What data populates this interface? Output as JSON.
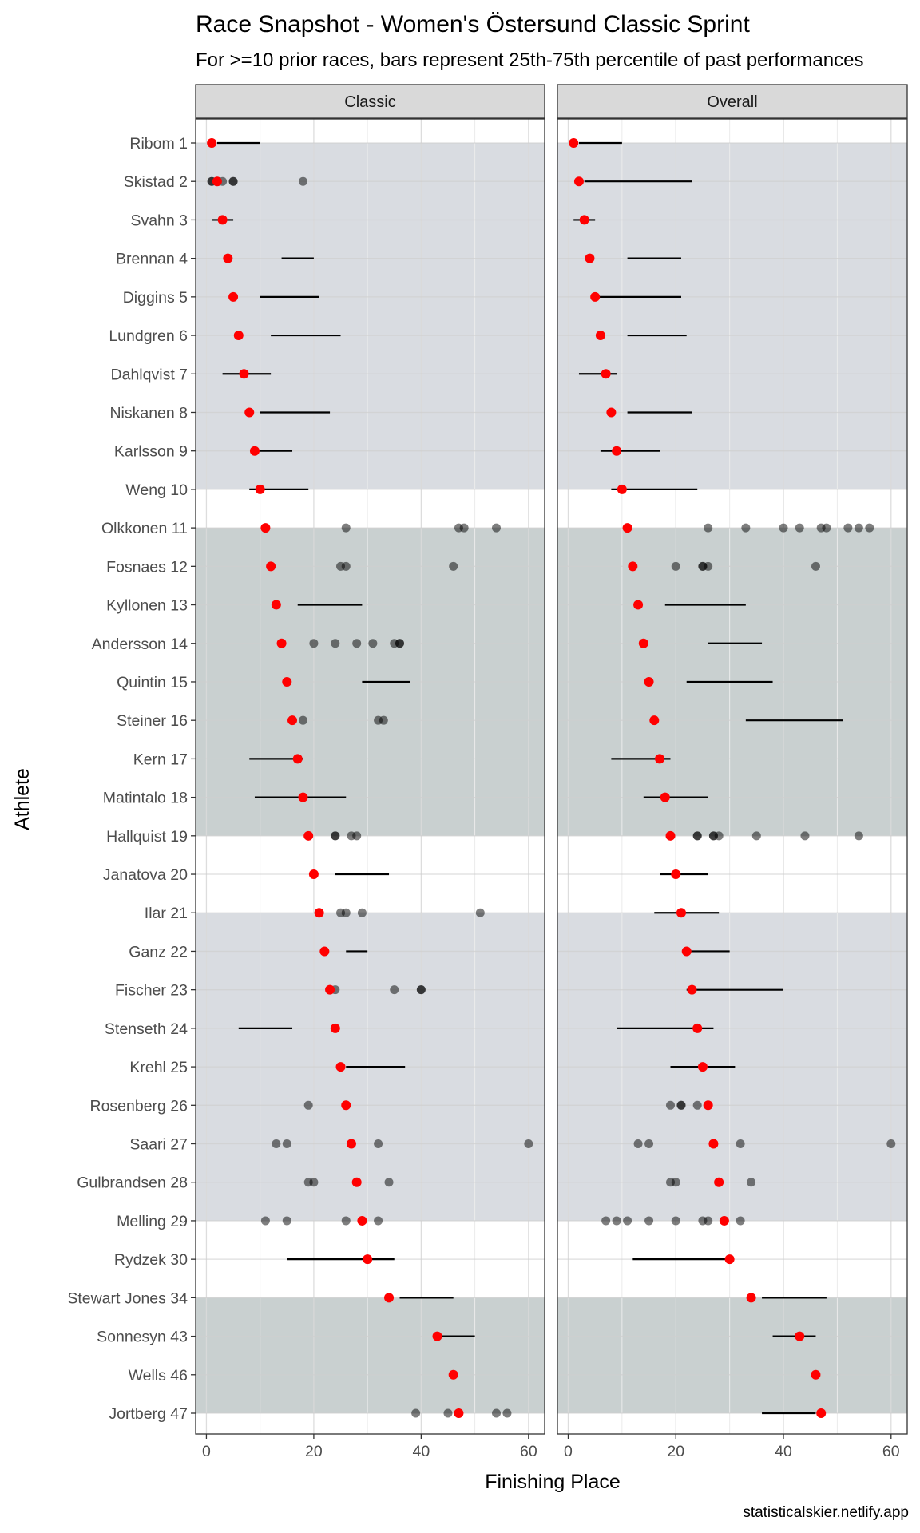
{
  "chart_data": {
    "type": "scatter",
    "title": "Race Snapshot -  Women's Östersund Classic Sprint",
    "subtitle": "For >=10 prior races, bars represent 25th-75th percentile of past performances",
    "xlabel": "Finishing Place",
    "ylabel": "Athlete",
    "caption": "statisticalskier.netlify.app",
    "xlim": [
      -2,
      63
    ],
    "x_ticks": [
      0,
      20,
      40,
      60
    ],
    "grid": true,
    "colors": {
      "current_place": "#ff0000",
      "past_points": "#000000",
      "band_light": "#d9dce1",
      "band_dark": "#c9d0d0",
      "strip_bg": "#d9d9d9"
    },
    "bands": [
      {
        "from": 0,
        "to": 9,
        "shade": "light"
      },
      {
        "from": 10,
        "to": 18,
        "shade": "dark"
      },
      {
        "from": 20,
        "to": 28,
        "shade": "light"
      },
      {
        "from": 30,
        "to": 33,
        "shade": "dark"
      }
    ],
    "athletes": [
      "Ribom 1",
      "Skistad 2",
      "Svahn 3",
      "Brennan 4",
      "Diggins 5",
      "Lundgren 6",
      "Dahlqvist 7",
      "Niskanen 8",
      "Karlsson 9",
      "Weng 10",
      "Olkkonen 11",
      "Fosnaes 12",
      "Kyllonen 13",
      "Andersson 14",
      "Quintin 15",
      "Steiner 16",
      "Kern 17",
      "Matintalo 18",
      "Hallquist 19",
      "Janatova 20",
      "Ilar 21",
      "Ganz 22",
      "Fischer 23",
      "Stenseth 24",
      "Krehl 25",
      "Rosenberg 26",
      "Saari 27",
      "Gulbrandsen 28",
      "Melling 29",
      "Rydzek 30",
      "Stewart Jones 34",
      "Sonnesyn 43",
      "Wells 46",
      "Jortberg 47"
    ],
    "current_place": [
      1,
      2,
      3,
      4,
      5,
      6,
      7,
      8,
      9,
      10,
      11,
      12,
      13,
      14,
      15,
      16,
      17,
      18,
      19,
      20,
      21,
      22,
      23,
      24,
      25,
      26,
      27,
      28,
      29,
      30,
      34,
      43,
      46,
      47
    ],
    "facets": [
      {
        "name": "Classic",
        "iqr": [
          [
            2,
            10
          ],
          null,
          [
            1,
            5
          ],
          [
            14,
            20
          ],
          [
            10,
            21
          ],
          [
            12,
            25
          ],
          [
            3,
            12
          ],
          [
            10,
            23
          ],
          [
            9,
            16
          ],
          [
            8,
            19
          ],
          null,
          null,
          [
            17,
            29
          ],
          null,
          [
            29,
            38
          ],
          null,
          [
            8,
            18
          ],
          [
            9,
            26
          ],
          null,
          [
            24,
            34
          ],
          null,
          [
            26,
            30
          ],
          null,
          [
            6,
            16
          ],
          [
            26,
            37
          ],
          null,
          null,
          null,
          null,
          [
            15,
            35
          ],
          [
            36,
            46
          ],
          [
            43,
            50
          ],
          null,
          null
        ],
        "past": [
          [],
          [
            1,
            1,
            2,
            3,
            5,
            5,
            18
          ],
          [],
          [],
          [],
          [],
          [],
          [],
          [],
          [],
          [
            26,
            47,
            48,
            54
          ],
          [
            25,
            26,
            46
          ],
          [],
          [
            20,
            24,
            28,
            31,
            35,
            36,
            36
          ],
          [],
          [
            18,
            32,
            33
          ],
          [],
          [],
          [
            24,
            24,
            27,
            28
          ],
          [],
          [
            25,
            26,
            29,
            51
          ],
          [],
          [
            24,
            35,
            40,
            40
          ],
          [],
          [],
          [
            19
          ],
          [
            13,
            15,
            32,
            60
          ],
          [
            19,
            20,
            34
          ],
          [
            11,
            15,
            26,
            32
          ],
          [],
          [],
          [],
          [],
          [
            39,
            45,
            54,
            56
          ]
        ]
      },
      {
        "name": "Overall",
        "iqr": [
          [
            2,
            10
          ],
          [
            3,
            23
          ],
          [
            1,
            5
          ],
          [
            11,
            21
          ],
          [
            5,
            21
          ],
          [
            11,
            22
          ],
          [
            2,
            9
          ],
          [
            11,
            23
          ],
          [
            6,
            17
          ],
          [
            8,
            24
          ],
          null,
          null,
          [
            18,
            33
          ],
          [
            26,
            36
          ],
          [
            22,
            38
          ],
          [
            33,
            51
          ],
          [
            8,
            19
          ],
          [
            14,
            26
          ],
          null,
          [
            17,
            26
          ],
          [
            16,
            28
          ],
          [
            22,
            30
          ],
          [
            22,
            40
          ],
          [
            9,
            27
          ],
          [
            19,
            31
          ],
          null,
          null,
          null,
          null,
          [
            12,
            30
          ],
          [
            36,
            48
          ],
          [
            38,
            46
          ],
          null,
          [
            36,
            46
          ]
        ],
        "past": [
          [],
          [],
          [],
          [],
          [],
          [],
          [],
          [],
          [],
          [],
          [
            26,
            33,
            40,
            43,
            47,
            48,
            52,
            54,
            56
          ],
          [
            20,
            25,
            25,
            26,
            46
          ],
          [],
          [],
          [],
          [],
          [],
          [],
          [
            24,
            24,
            27,
            27,
            28,
            35,
            44,
            54
          ],
          [],
          [],
          [],
          [],
          [],
          [],
          [
            19,
            21,
            21,
            24
          ],
          [
            13,
            15,
            32,
            60
          ],
          [
            19,
            20,
            34
          ],
          [
            7,
            9,
            11,
            15,
            20,
            25,
            26,
            32
          ],
          [],
          [],
          [],
          [],
          []
        ]
      }
    ]
  }
}
